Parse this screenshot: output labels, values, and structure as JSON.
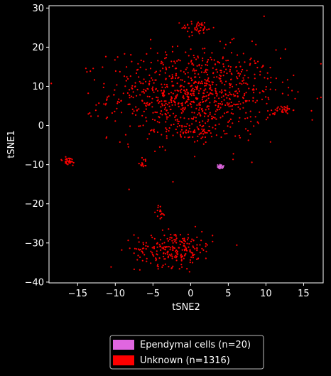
{
  "chart_data": {
    "type": "scatter",
    "title": "",
    "xlabel": "tSNE2",
    "ylabel": "tSNE1",
    "xlim": [
      -18.8,
      17.6
    ],
    "ylim": [
      -40.2,
      30.6
    ],
    "xticks": [
      -15,
      -10,
      -5,
      0,
      5,
      10,
      15
    ],
    "yticks": [
      -40,
      -30,
      -20,
      -10,
      0,
      10,
      20,
      30
    ],
    "xtick_labels": [
      "−15",
      "−10",
      "−5",
      "0",
      "5",
      "10",
      "15"
    ],
    "ytick_labels": [
      "−40",
      "−30",
      "−20",
      "−10",
      "0",
      "10",
      "20",
      "30"
    ],
    "grid": false,
    "legend_position": "below",
    "series": [
      {
        "name": "Ependymal cells (n=20)",
        "color": "#e066e0",
        "points": [
          [
            3.6,
            -10.1
          ],
          [
            3.8,
            -10.3
          ],
          [
            3.9,
            -10.6
          ],
          [
            4.0,
            -10.2
          ],
          [
            4.1,
            -10.8
          ],
          [
            3.7,
            -10.5
          ],
          [
            4.2,
            -10.4
          ],
          [
            3.9,
            -10.0
          ],
          [
            4.3,
            -10.7
          ],
          [
            3.8,
            -10.9
          ],
          [
            4.0,
            -10.5
          ],
          [
            3.6,
            -10.6
          ],
          [
            4.4,
            -10.3
          ],
          [
            3.9,
            -11.0
          ],
          [
            4.1,
            -10.1
          ],
          [
            3.7,
            -10.8
          ],
          [
            4.2,
            -10.9
          ],
          [
            4.0,
            -10.7
          ],
          [
            3.8,
            -10.4
          ],
          [
            4.3,
            -10.5
          ]
        ]
      },
      {
        "name": "Unknown (n=1316)",
        "color": "#ff0000",
        "clusters": [
          {
            "n": 900,
            "cx": 0.5,
            "cy": 8.0,
            "sx": 5.6,
            "sy": 5.8
          },
          {
            "n": 45,
            "cx": 1.0,
            "cy": 25.0,
            "sx": 1.1,
            "sy": 0.9
          },
          {
            "n": 30,
            "cx": 12.3,
            "cy": 4.0,
            "sx": 0.6,
            "sy": 0.5
          },
          {
            "n": 45,
            "cx": 0.0,
            "cy": -2.0,
            "sx": 1.4,
            "sy": 1.2
          },
          {
            "n": 30,
            "cx": -16.3,
            "cy": -9.2,
            "sx": 0.6,
            "sy": 0.6
          },
          {
            "n": 15,
            "cx": -6.2,
            "cy": -9.5,
            "sx": 0.4,
            "sy": 0.6
          },
          {
            "n": 15,
            "cx": -4.0,
            "cy": -22.0,
            "sx": 0.3,
            "sy": 1.0
          },
          {
            "n": 236,
            "cx": -2.2,
            "cy": -31.5,
            "sx": 2.6,
            "sy": 2.2
          }
        ]
      }
    ]
  }
}
